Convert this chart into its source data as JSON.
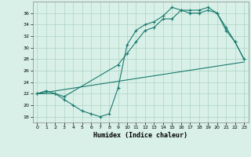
{
  "xlabel": "Humidex (Indice chaleur)",
  "bg_color": "#d8f0e8",
  "line_color": "#1a7a6e",
  "grid_color": "#aed4c4",
  "xlim": [
    -0.5,
    23.5
  ],
  "ylim": [
    17,
    38
  ],
  "yticks": [
    18,
    20,
    22,
    24,
    26,
    28,
    30,
    32,
    34,
    36
  ],
  "xticks": [
    0,
    1,
    2,
    3,
    4,
    5,
    6,
    7,
    8,
    9,
    10,
    11,
    12,
    13,
    14,
    15,
    16,
    17,
    18,
    19,
    20,
    21,
    22,
    23
  ],
  "line1_x": [
    0,
    1,
    2,
    3,
    4,
    5,
    6,
    7,
    8,
    9,
    10,
    11,
    12,
    13,
    14,
    15,
    16,
    17,
    18,
    19,
    20,
    21,
    22,
    23
  ],
  "line1_y": [
    22,
    22.5,
    22,
    21,
    20,
    19,
    18.5,
    18,
    18.5,
    23,
    30.5,
    33,
    34,
    34.5,
    35.5,
    37,
    36.5,
    36.5,
    36.5,
    37,
    36,
    33,
    31,
    28
  ],
  "line2_x": [
    0,
    23
  ],
  "line2_y": [
    22,
    27.5
  ],
  "line3_x": [
    0,
    2,
    3,
    9,
    10,
    11,
    12,
    13,
    14,
    15,
    16,
    17,
    18,
    19,
    20,
    21,
    22,
    23
  ],
  "line3_y": [
    22,
    22,
    21.5,
    27,
    29,
    31,
    33,
    33.5,
    35,
    35,
    36.5,
    36,
    36,
    36.5,
    36,
    33.5,
    31,
    28
  ]
}
